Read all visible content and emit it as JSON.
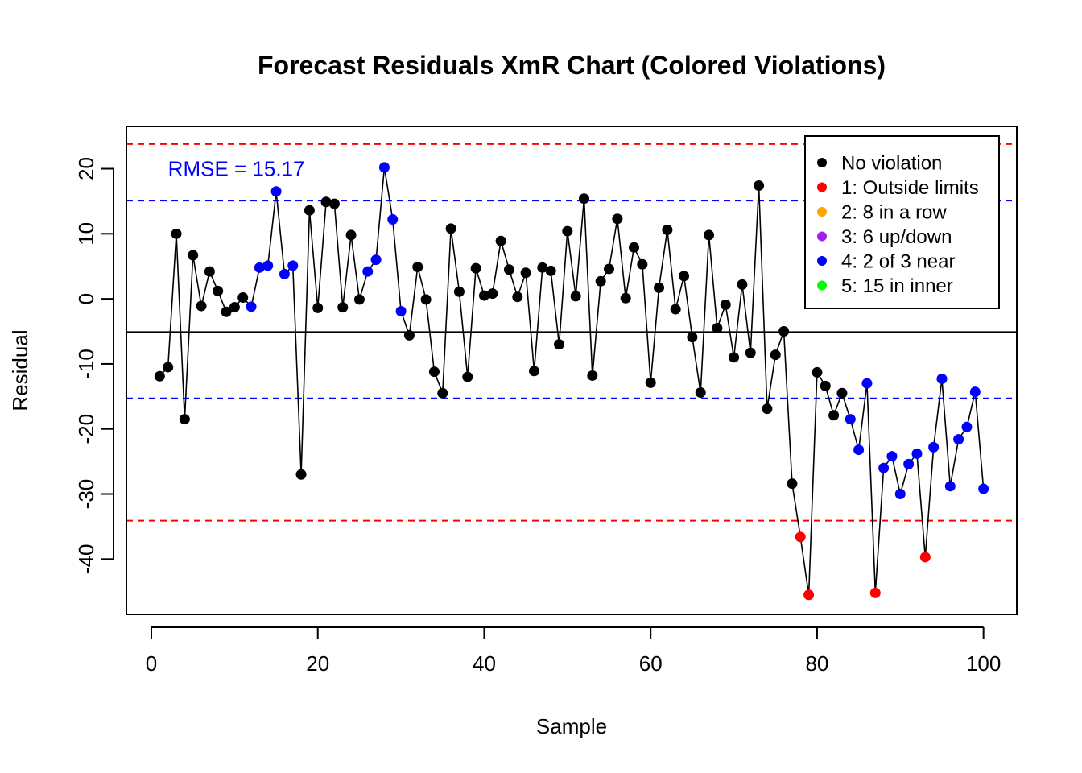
{
  "chart_data": {
    "type": "line",
    "title": "Forecast Residuals XmR Chart (Colored Violations)",
    "xlabel": "Sample",
    "ylabel": "Residual",
    "xlim": [
      -3,
      104
    ],
    "ylim": [
      -48.5,
      26.5
    ],
    "xticks": [
      0,
      20,
      40,
      60,
      80,
      100
    ],
    "yticks": [
      -40,
      -30,
      -20,
      -10,
      0,
      10,
      20
    ],
    "center_line": -5.1,
    "ucl": 23.8,
    "lcl": -34.1,
    "upper_inner": 15.1,
    "lower_inner": -15.3,
    "annotation": {
      "text": "RMSE = 15.17",
      "x": 2,
      "y": 20,
      "color": "#0000FF"
    },
    "legend": {
      "position": "top-right",
      "items": [
        {
          "label": "No violation",
          "color": "#000000"
        },
        {
          "label": "1: Outside limits",
          "color": "#FF0000"
        },
        {
          "label": "2: 8 in a row",
          "color": "#FFA500"
        },
        {
          "label": "3: 6 up/down",
          "color": "#A020F0"
        },
        {
          "label": "4: 2 of 3 near",
          "color": "#0000FF"
        },
        {
          "label": "5: 15 in inner",
          "color": "#00FF00"
        }
      ]
    },
    "colors": {
      "series_line": "#000000",
      "control_limit": "#FF0000",
      "inner_limit": "#0000FF",
      "center_line": "#000000"
    },
    "series": [
      {
        "x": [
          1,
          2,
          3,
          4,
          5,
          6,
          7,
          8,
          9,
          10,
          11,
          12,
          13,
          14,
          15,
          16,
          17,
          18,
          19,
          20,
          21,
          22,
          23,
          24,
          25,
          26,
          27,
          28,
          29,
          30,
          31,
          32,
          33,
          34,
          35,
          36,
          37,
          38,
          39,
          40,
          41,
          42,
          43,
          44,
          45,
          46,
          47,
          48,
          49,
          50,
          51,
          52,
          53,
          54,
          55,
          56,
          57,
          58,
          59,
          60,
          61,
          62,
          63,
          64,
          65,
          66,
          67,
          68,
          69,
          70,
          71,
          72,
          73,
          74,
          75,
          76,
          77,
          78,
          79,
          80,
          81,
          82,
          83,
          84,
          85,
          86,
          87,
          88,
          89,
          90,
          91,
          92,
          93,
          94,
          95,
          96,
          97,
          98,
          99,
          100
        ],
        "values": [
          -11.9,
          -10.5,
          10,
          -18.5,
          6.7,
          -1.1,
          4.2,
          1.2,
          -2,
          -1.3,
          0.2,
          -1.2,
          4.8,
          5.1,
          16.5,
          3.8,
          5.1,
          -27,
          13.6,
          -1.4,
          14.9,
          14.6,
          -1.3,
          9.8,
          -0.1,
          4.2,
          6,
          20.2,
          12.2,
          -1.9,
          -5.6,
          4.9,
          -0.1,
          -11.2,
          -14.5,
          10.8,
          1.1,
          -12,
          4.7,
          0.5,
          0.8,
          8.9,
          4.5,
          0.3,
          4,
          -11.1,
          4.8,
          4.3,
          -7,
          10.4,
          0.4,
          15.4,
          -11.8,
          2.7,
          4.6,
          12.3,
          0.1,
          7.9,
          5.3,
          -12.9,
          1.7,
          10.6,
          -1.6,
          3.5,
          -5.9,
          -14.4,
          9.8,
          -4.5,
          -0.9,
          -9,
          2.2,
          -8.3,
          17.4,
          -16.9,
          -8.6,
          -5,
          -28.4,
          -36.6,
          -45.5,
          -11.3,
          -13.4,
          -17.9,
          -14.5,
          -18.5,
          -23.2,
          -13,
          -45.2,
          -26,
          -24.2,
          -30,
          -25.4,
          -23.8,
          -39.7,
          -22.8,
          -12.3,
          -28.8,
          -21.6,
          -19.7,
          -14.3,
          -29.2
        ],
        "colors": [
          "#000000",
          "#000000",
          "#000000",
          "#000000",
          "#000000",
          "#000000",
          "#000000",
          "#000000",
          "#000000",
          "#000000",
          "#000000",
          "#0000FF",
          "#0000FF",
          "#0000FF",
          "#0000FF",
          "#0000FF",
          "#0000FF",
          "#000000",
          "#000000",
          "#000000",
          "#000000",
          "#000000",
          "#000000",
          "#000000",
          "#000000",
          "#0000FF",
          "#0000FF",
          "#0000FF",
          "#0000FF",
          "#0000FF",
          "#000000",
          "#000000",
          "#000000",
          "#000000",
          "#000000",
          "#000000",
          "#000000",
          "#000000",
          "#000000",
          "#000000",
          "#000000",
          "#000000",
          "#000000",
          "#000000",
          "#000000",
          "#000000",
          "#000000",
          "#000000",
          "#000000",
          "#000000",
          "#000000",
          "#000000",
          "#000000",
          "#000000",
          "#000000",
          "#000000",
          "#000000",
          "#000000",
          "#000000",
          "#000000",
          "#000000",
          "#000000",
          "#000000",
          "#000000",
          "#000000",
          "#000000",
          "#000000",
          "#000000",
          "#000000",
          "#000000",
          "#000000",
          "#000000",
          "#000000",
          "#000000",
          "#000000",
          "#000000",
          "#000000",
          "#FF0000",
          "#FF0000",
          "#000000",
          "#000000",
          "#000000",
          "#000000",
          "#0000FF",
          "#0000FF",
          "#0000FF",
          "#FF0000",
          "#0000FF",
          "#0000FF",
          "#0000FF",
          "#0000FF",
          "#0000FF",
          "#FF0000",
          "#0000FF",
          "#0000FF",
          "#0000FF",
          "#0000FF",
          "#0000FF",
          "#0000FF",
          "#0000FF"
        ]
      }
    ]
  }
}
